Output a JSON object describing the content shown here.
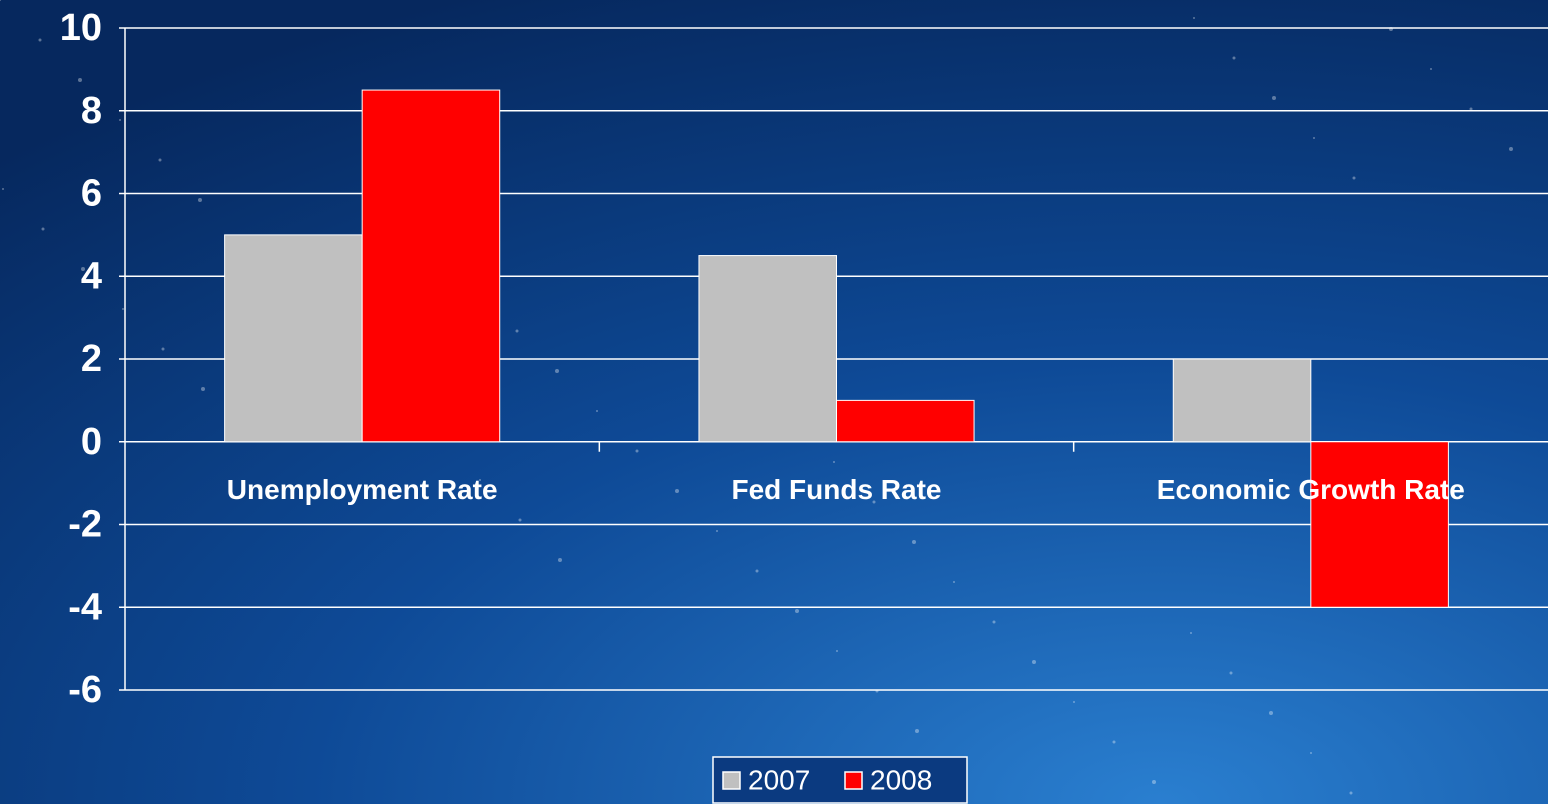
{
  "chart_data": {
    "type": "bar",
    "categories": [
      "Unemployment Rate",
      "Fed Funds Rate",
      "Economic Growth Rate"
    ],
    "series": [
      {
        "name": "2007",
        "color": "#c0c0c0",
        "values": [
          5,
          4.5,
          2
        ]
      },
      {
        "name": "2008",
        "color": "#ff0000",
        "values": [
          8.5,
          1,
          -4
        ]
      }
    ],
    "ylim": [
      -6,
      10
    ],
    "yticks": [
      -6,
      -4,
      -2,
      0,
      2,
      4,
      6,
      8,
      10
    ],
    "grid": true,
    "legend": "bottom"
  }
}
